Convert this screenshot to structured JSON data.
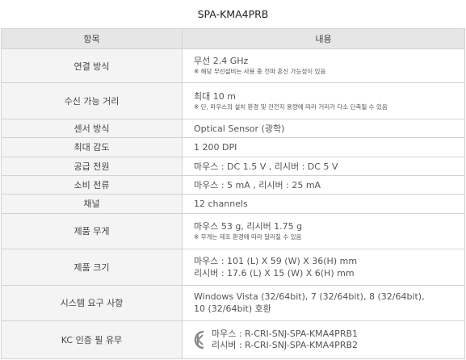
{
  "model_title": "SPA-KMA4PRB",
  "header": {
    "item": "항목",
    "content": "내용"
  },
  "rows": [
    {
      "label": "연결 방식",
      "lines": [
        "무선 2.4 GHz"
      ],
      "note": "※ 해당 무선설비는 사용 중 전파 혼신 가능성이 있음"
    },
    {
      "label": "수신 가능 거리",
      "lines": [
        "최대 10 m"
      ],
      "note": "※ 단, 마우스의 설치 환경 및 건전지 용량에 따라 거리가 다소 단축될 수 있음"
    },
    {
      "label": "센서 방식",
      "lines": [
        "Optical Sensor (광학)"
      ]
    },
    {
      "label": "최대 감도",
      "lines": [
        "1 200 DPI"
      ]
    },
    {
      "label": "공급 전원",
      "lines": [
        "마우스 : DC 1.5 V , 리시버 : DC 5 V"
      ]
    },
    {
      "label": "소비 전류",
      "lines": [
        "마우스 : 5 mA , 리시버 : 25 mA"
      ]
    },
    {
      "label": "채널",
      "lines": [
        "12 channels"
      ]
    },
    {
      "label": "제품 무게",
      "lines": [
        "마우스 53 g, 리시버 1.75 g"
      ],
      "note": "※ 무게는 제조 환경에 따라 달라질 수 있음"
    },
    {
      "label": "제품 크기",
      "lines": [
        "마우스 : 101 (L) X 59 (W) X 36(H) mm",
        "리시버 : 17.6 (L) X 15 (W) X 6(H) mm"
      ]
    },
    {
      "label": "시스템 요구 사항",
      "lines": [
        "Windows Vista (32/64bit), 7 (32/64bit), 8 (32/64bit),",
        "10 (32/64bit) 호환"
      ]
    }
  ],
  "kc_row": {
    "label": "KC 인증 필 유무",
    "icon": "kc-certification-mark-icon",
    "lines": [
      "마우스 : R-CRI-SNJ-SPA-KMA4PRB1",
      "리시버 : R-CRI-SNJ-SPA-KMA4PRB2"
    ]
  },
  "colors": {
    "header_bg": "#e6e6e6",
    "label_bg": "#f4f4f4",
    "border": "#d2d2d2",
    "kc_mark": "#8a8a8a"
  }
}
